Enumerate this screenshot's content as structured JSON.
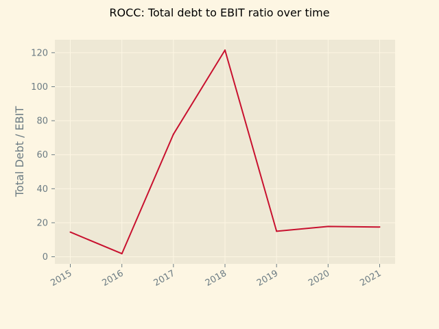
{
  "chart_data": {
    "type": "line",
    "title": "ROCC: Total debt to EBIT ratio over time",
    "xlabel": "",
    "ylabel": "Total Debt / EBIT",
    "x": [
      "2015",
      "2016",
      "2017",
      "2018",
      "2019",
      "2020",
      "2021"
    ],
    "series": [
      {
        "values": [
          14.5,
          1.8,
          72.0,
          121.5,
          15.0,
          17.8,
          17.5
        ],
        "color": "#c8102e"
      }
    ],
    "yticks": [
      0,
      20,
      40,
      60,
      80,
      100,
      120
    ],
    "ylim": [
      -4.2,
      127.6
    ],
    "grid": true,
    "colors": {
      "page_background": "#fdf6e3",
      "plot_background": "#eee8d5",
      "grid": "#fdf6e3",
      "text": "#6b7b83"
    }
  }
}
